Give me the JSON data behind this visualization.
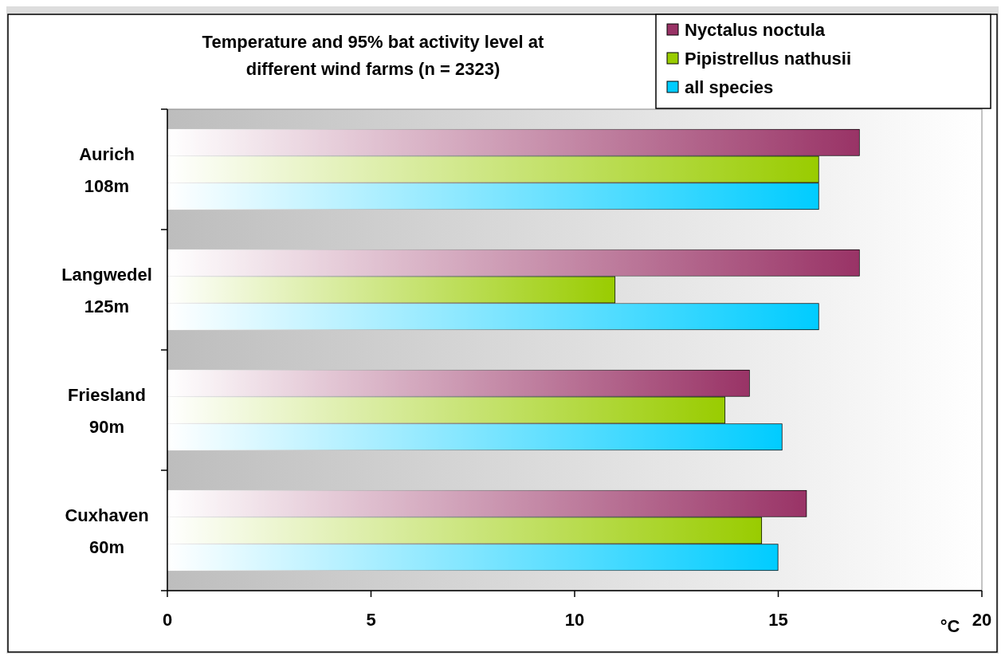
{
  "chart_data": {
    "type": "bar",
    "orientation": "horizontal",
    "title": "Temperature and 95% bat activity level at different wind farms (n = 2323)",
    "xlabel": "°C",
    "categories": [
      "Aurich 108m",
      "Langwedel 125m",
      "Friesland 90m",
      "Cuxhaven 60m"
    ],
    "series": [
      {
        "name": "Nyctalus noctula",
        "color": "#993366",
        "values": [
          17,
          17,
          14.3,
          15.7
        ]
      },
      {
        "name": "Pipistrellus nathusii",
        "color": "#99cc00",
        "values": [
          16,
          11,
          13.7,
          14.6
        ]
      },
      {
        "name": "all species",
        "color": "#00ccff",
        "values": [
          16,
          16,
          15.1,
          15
        ]
      }
    ],
    "xlim": [
      0,
      20
    ],
    "xticks": [
      0,
      5,
      10,
      15,
      20
    ],
    "legend": "top right"
  }
}
